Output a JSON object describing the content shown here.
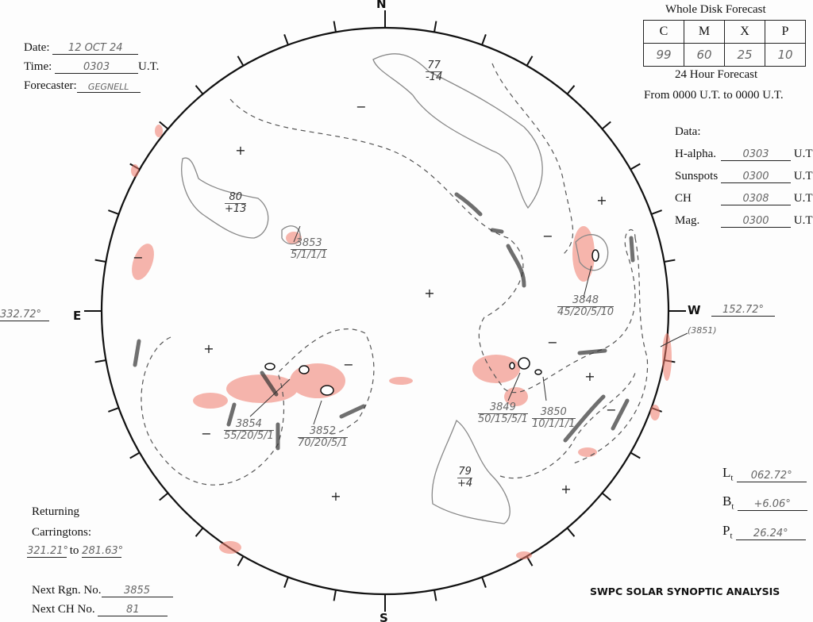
{
  "header": {
    "date_label": "Date:",
    "date": "12 OCT 24",
    "time_label": "Time:",
    "time": "0303",
    "ut": "U.T.",
    "forecaster_label": "Forecaster:",
    "forecaster": "GEGNELL"
  },
  "forecast": {
    "title": "Whole Disk Forecast",
    "headers": [
      "C",
      "M",
      "X",
      "P"
    ],
    "values": [
      "99",
      "60",
      "25",
      "10"
    ],
    "subtitle": "24 Hour Forecast",
    "period": "From 0000 U.T. to 0000 U.T."
  },
  "data_times": {
    "title": "Data:",
    "rows": [
      {
        "label": "H-alpha.",
        "value": "0303",
        "unit": "U.T"
      },
      {
        "label": "Sunspots",
        "value": "0300",
        "unit": "U.T"
      },
      {
        "label": "CH",
        "value": "0308",
        "unit": "U.T"
      },
      {
        "label": "Mag.",
        "value": "0300",
        "unit": "U.T"
      }
    ]
  },
  "disk": {
    "north": "N",
    "south": "S",
    "east": "E",
    "west": "W",
    "east_longitude": "332.72°",
    "west_longitude": "152.72°"
  },
  "returning": {
    "line1": "Returning",
    "line2": "Carringtons:",
    "from": "321.21°",
    "to_label": "to",
    "to": "281.63°"
  },
  "next": {
    "rgn_label": "Next Rgn. No.",
    "rgn": "3855",
    "ch_label": "Next CH No.",
    "ch": "81"
  },
  "ephemeris": {
    "lt_label": "L",
    "bt_label": "B",
    "pt_label": "P",
    "sub": "t",
    "lt": "062.72°",
    "bt": "+6.06°",
    "pt": "26.24°"
  },
  "footer": "SWPC SOLAR SYNOPTIC ANALYSIS",
  "regions": [
    {
      "num": "3853",
      "info": "5/1/1/1"
    },
    {
      "num": "3848",
      "info": "45/20/5/10"
    },
    {
      "num": "3849",
      "info": "50/15/5/1"
    },
    {
      "num": "3850",
      "info": "10/1/1/1"
    },
    {
      "num": "3854",
      "info": "55/20/5/1"
    },
    {
      "num": "3852",
      "info": "70/20/5/1"
    },
    {
      "num": "(3851)",
      "info": ""
    }
  ],
  "coronal_holes": [
    {
      "num": "77",
      "lat": "-14"
    },
    {
      "num": "80",
      "lat": "+13"
    },
    {
      "num": "79",
      "lat": "+4"
    }
  ],
  "colors": {
    "plage": "#f07a6a",
    "ink": "#111111",
    "pencil": "#777777"
  }
}
